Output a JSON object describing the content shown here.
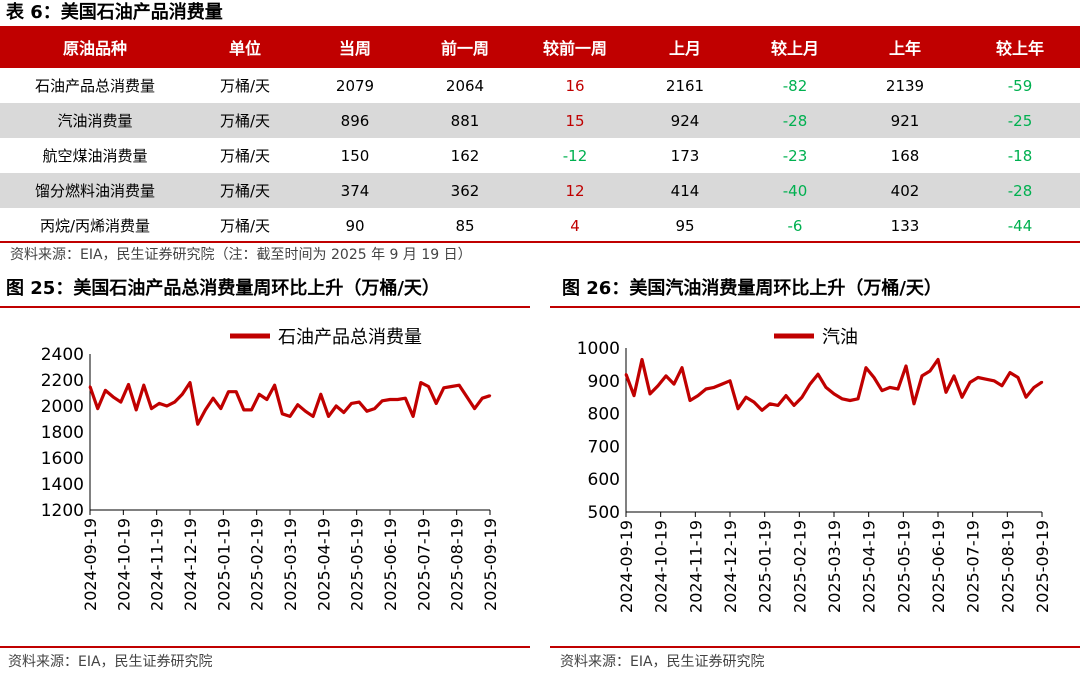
{
  "table": {
    "title": "表 6：美国石油产品消费量",
    "headers": [
      "原油品种",
      "单位",
      "当周",
      "前一周",
      "较前一周",
      "上月",
      "较上月",
      "上年",
      "较上年"
    ],
    "rows": [
      [
        "石油产品总消费量",
        "万桶/天",
        "2079",
        "2064",
        "16",
        "2161",
        "-82",
        "2139",
        "-59"
      ],
      [
        "汽油消费量",
        "万桶/天",
        "896",
        "881",
        "15",
        "924",
        "-28",
        "921",
        "-25"
      ],
      [
        "航空煤油消费量",
        "万桶/天",
        "150",
        "162",
        "-12",
        "173",
        "-23",
        "168",
        "-18"
      ],
      [
        "馏分燃料油消费量",
        "万桶/天",
        "374",
        "362",
        "12",
        "414",
        "-40",
        "402",
        "-28"
      ],
      [
        "丙烷/丙烯消费量",
        "万桶/天",
        "90",
        "85",
        "4",
        "95",
        "-6",
        "133",
        "-44"
      ]
    ],
    "source": "资料来源：EIA，民生证券研究院（注：截至时间为 2025 年 9 月 19 日）"
  },
  "colors": {
    "accent": "#c00000",
    "positive": "#c00000",
    "negative": "#00b050",
    "row_alt": "#d9d9d9"
  },
  "chart_data": [
    {
      "type": "line",
      "title": "图 25：美国石油产品总消费量周环比上升（万桶/天）",
      "series_name": "石油产品总消费量",
      "legend_position": "top",
      "ylim": [
        1200,
        2400
      ],
      "yticks": [
        1200,
        1400,
        1600,
        1800,
        2000,
        2200,
        2400
      ],
      "xticks": [
        "2024-09-19",
        "2024-10-19",
        "2024-11-19",
        "2024-12-19",
        "2025-01-19",
        "2025-02-19",
        "2025-03-19",
        "2025-04-19",
        "2025-05-19",
        "2025-06-19",
        "2025-07-19",
        "2025-08-19",
        "2025-09-19"
      ],
      "values": [
        2150,
        1980,
        2120,
        2070,
        2030,
        2165,
        1970,
        2160,
        1980,
        2020,
        2000,
        2030,
        2090,
        2180,
        1860,
        1970,
        2060,
        1980,
        2110,
        2110,
        1970,
        1970,
        2090,
        2050,
        2160,
        1940,
        1920,
        2010,
        1960,
        1920,
        2090,
        1920,
        2000,
        1950,
        2020,
        2030,
        1960,
        1980,
        2040,
        2050,
        2050,
        2060,
        1920,
        2180,
        2150,
        2020,
        2140,
        2150,
        2160,
        2070,
        1980,
        2060,
        2079
      ],
      "source": "资料来源：EIA，民生证券研究院"
    },
    {
      "type": "line",
      "title": "图 26：美国汽油消费量周环比上升（万桶/天）",
      "series_name": "汽油",
      "legend_position": "top",
      "ylim": [
        500,
        1000
      ],
      "yticks": [
        500,
        600,
        700,
        800,
        900,
        1000
      ],
      "xticks": [
        "2024-09-19",
        "2024-10-19",
        "2024-11-19",
        "2024-12-19",
        "2025-01-19",
        "2025-02-19",
        "2025-03-19",
        "2025-04-19",
        "2025-05-19",
        "2025-06-19",
        "2025-07-19",
        "2025-08-19",
        "2025-09-19"
      ],
      "values": [
        920,
        855,
        965,
        860,
        885,
        915,
        890,
        940,
        840,
        855,
        875,
        880,
        890,
        900,
        815,
        850,
        835,
        810,
        830,
        825,
        855,
        825,
        850,
        890,
        920,
        880,
        860,
        845,
        840,
        845,
        940,
        910,
        870,
        880,
        875,
        945,
        830,
        915,
        930,
        965,
        865,
        915,
        850,
        895,
        910,
        905,
        900,
        885,
        925,
        910,
        850,
        880,
        896
      ],
      "source": "资料来源：EIA，民生证券研究院"
    }
  ]
}
